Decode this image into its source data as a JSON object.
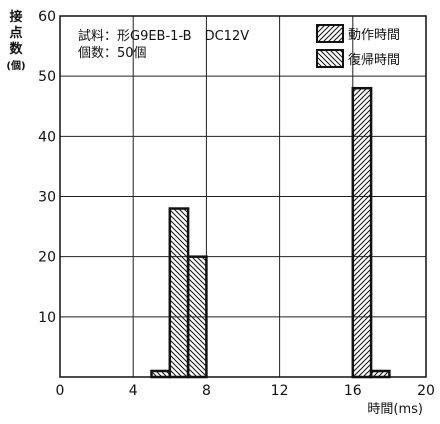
{
  "chart_data": {
    "type": "bar",
    "title": "",
    "notes": [
      "試料：形G9EB-1-B　DC12V",
      "個数：50個"
    ],
    "ylabel": "接点数(個)",
    "xlabel": "時間(ms)",
    "xlim": [
      0,
      20
    ],
    "ylim": [
      0,
      60
    ],
    "xticks": [
      0,
      4,
      8,
      12,
      16,
      20
    ],
    "yticks": [
      10,
      20,
      30,
      40,
      50,
      60
    ],
    "grid": true,
    "legend_position": "top-right",
    "bin_width": 1,
    "series": [
      {
        "name": "動作時間",
        "pattern": "hatch-forward",
        "bins": [
          {
            "x0": 16,
            "x1": 17,
            "value": 48
          },
          {
            "x0": 17,
            "x1": 18,
            "value": 1
          }
        ]
      },
      {
        "name": "復帰時間",
        "pattern": "hatch-backward",
        "bins": [
          {
            "x0": 5,
            "x1": 6,
            "value": 1
          },
          {
            "x0": 6,
            "x1": 7,
            "value": 28
          },
          {
            "x0": 7,
            "x1": 8,
            "value": 20
          }
        ]
      }
    ],
    "colors": {
      "ink": "#111111",
      "background": "#ffffff"
    }
  }
}
